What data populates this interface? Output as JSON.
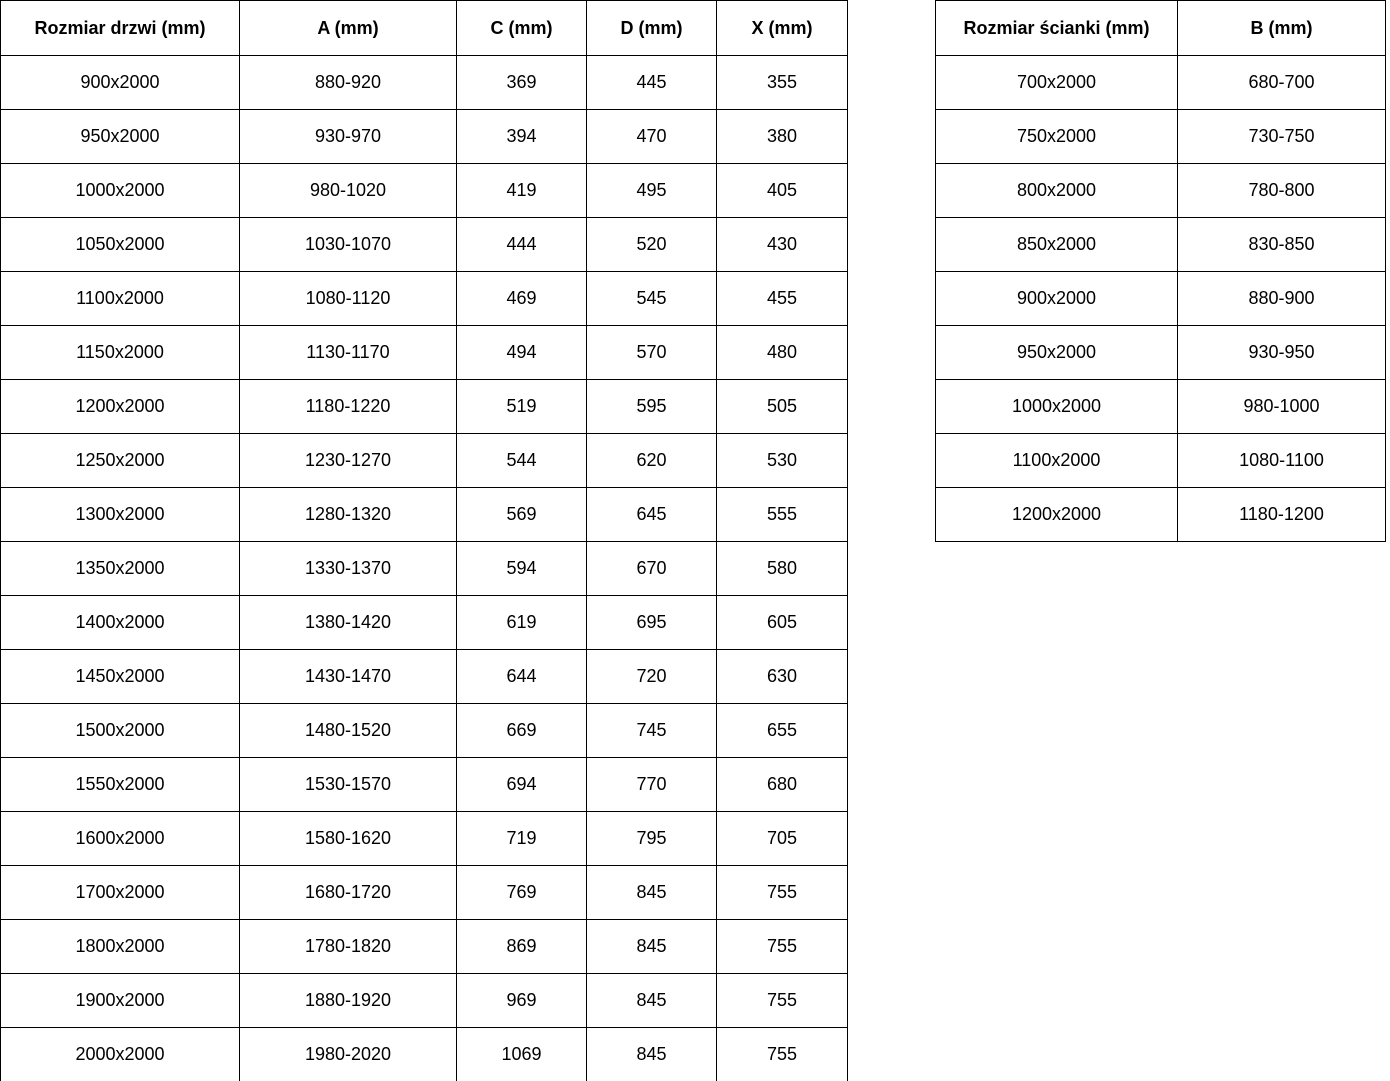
{
  "colors": {
    "border": "#000000",
    "text": "#000000",
    "background": "#ffffff"
  },
  "doors_table": {
    "name": "door-sizes-table",
    "headers": [
      "Rozmiar drzwi (mm)",
      "A (mm)",
      "C (mm)",
      "D (mm)",
      "X (mm)"
    ],
    "rows": [
      [
        "900x2000",
        "880-920",
        "369",
        "445",
        "355"
      ],
      [
        "950x2000",
        "930-970",
        "394",
        "470",
        "380"
      ],
      [
        "1000x2000",
        "980-1020",
        "419",
        "495",
        "405"
      ],
      [
        "1050x2000",
        "1030-1070",
        "444",
        "520",
        "430"
      ],
      [
        "1100x2000",
        "1080-1120",
        "469",
        "545",
        "455"
      ],
      [
        "1150x2000",
        "1130-1170",
        "494",
        "570",
        "480"
      ],
      [
        "1200x2000",
        "1180-1220",
        "519",
        "595",
        "505"
      ],
      [
        "1250x2000",
        "1230-1270",
        "544",
        "620",
        "530"
      ],
      [
        "1300x2000",
        "1280-1320",
        "569",
        "645",
        "555"
      ],
      [
        "1350x2000",
        "1330-1370",
        "594",
        "670",
        "580"
      ],
      [
        "1400x2000",
        "1380-1420",
        "619",
        "695",
        "605"
      ],
      [
        "1450x2000",
        "1430-1470",
        "644",
        "720",
        "630"
      ],
      [
        "1500x2000",
        "1480-1520",
        "669",
        "745",
        "655"
      ],
      [
        "1550x2000",
        "1530-1570",
        "694",
        "770",
        "680"
      ],
      [
        "1600x2000",
        "1580-1620",
        "719",
        "795",
        "705"
      ],
      [
        "1700x2000",
        "1680-1720",
        "769",
        "845",
        "755"
      ],
      [
        "1800x2000",
        "1780-1820",
        "869",
        "845",
        "755"
      ],
      [
        "1900x2000",
        "1880-1920",
        "969",
        "845",
        "755"
      ],
      [
        "2000x2000",
        "1980-2020",
        "1069",
        "845",
        "755"
      ]
    ]
  },
  "walls_table": {
    "name": "wall-panel-sizes-table",
    "headers": [
      "Rozmiar ścianki (mm)",
      "B (mm)"
    ],
    "rows": [
      [
        "700x2000",
        "680-700"
      ],
      [
        "750x2000",
        "730-750"
      ],
      [
        "800x2000",
        "780-800"
      ],
      [
        "850x2000",
        "830-850"
      ],
      [
        "900x2000",
        "880-900"
      ],
      [
        "950x2000",
        "930-950"
      ],
      [
        "1000x2000",
        "980-1000"
      ],
      [
        "1100x2000",
        "1080-1100"
      ],
      [
        "1200x2000",
        "1180-1200"
      ]
    ]
  }
}
